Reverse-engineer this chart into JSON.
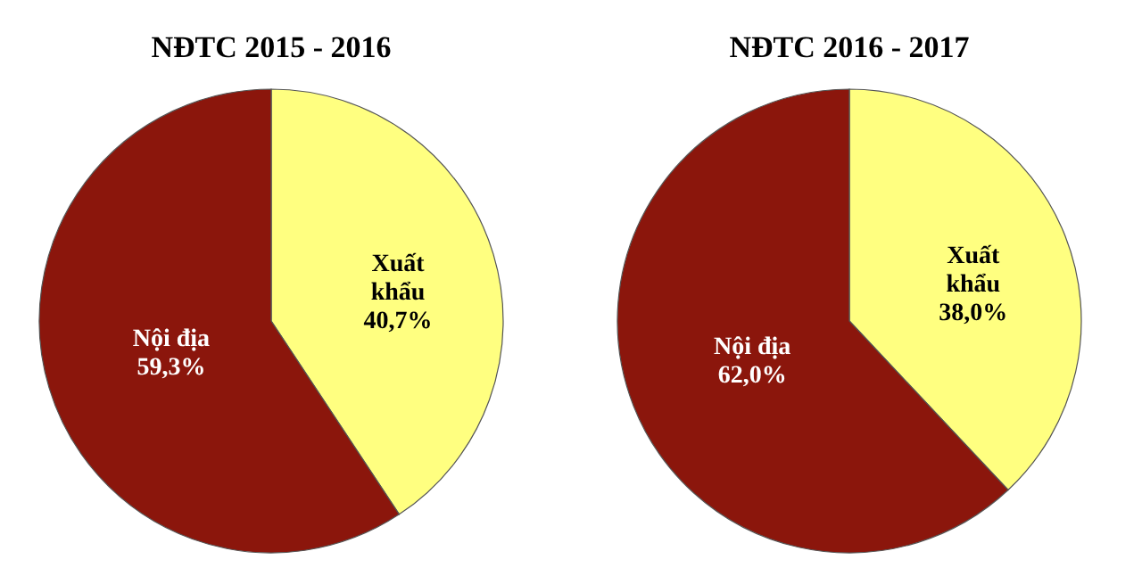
{
  "chart_data": [
    {
      "type": "pie",
      "title": "NĐTC 2015 - 2016",
      "categories": [
        "Xuất khẩu",
        "Nội địa"
      ],
      "values": [
        40.7,
        59.3
      ],
      "colors": [
        "#ffff80",
        "#8b160c"
      ],
      "value_labels": [
        "40,7%",
        "59,3%"
      ]
    },
    {
      "type": "pie",
      "title": "NĐTC 2016 - 2017",
      "categories": [
        "Xuất khẩu",
        "Nội địa"
      ],
      "values": [
        38.0,
        62.0
      ],
      "colors": [
        "#ffff80",
        "#8b160c"
      ],
      "value_labels": [
        "38,0%",
        "62,0%"
      ]
    }
  ]
}
